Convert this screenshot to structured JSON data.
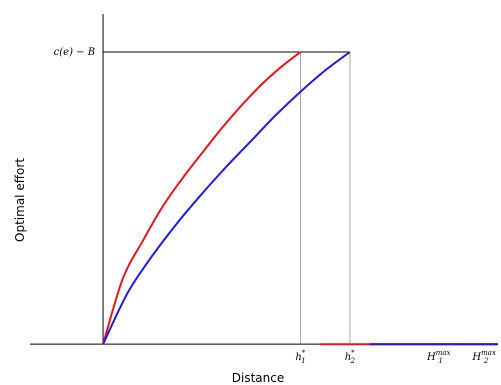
{
  "chart_data": {
    "type": "line",
    "xlabel": "Distance",
    "ylabel": "Optimal effort",
    "x_ticks": [
      {
        "x": 1.0,
        "base": "h",
        "sub": "1",
        "sup": "*"
      },
      {
        "x": 1.25,
        "base": "h",
        "sub": "2",
        "sup": "*"
      },
      {
        "x": 1.7,
        "base": "H",
        "sub": "1",
        "sup": "max"
      },
      {
        "x": 1.93,
        "base": "H",
        "sub": "2",
        "sup": "max"
      }
    ],
    "y_ticks": [
      {
        "y": 1.0,
        "label": "c(e) − B"
      }
    ],
    "xlim": [
      -0.37,
      2.0
    ],
    "ylim": [
      -0.02,
      1.13
    ],
    "cap_level": 1.0,
    "grid": false,
    "series": [
      {
        "color": "#e8141a",
        "x": [
          0,
          0.1,
          0.2,
          0.3,
          0.4,
          0.5,
          0.6,
          0.7,
          0.8,
          0.9,
          1.0,
          1.1,
          1.2,
          1.3,
          1.4,
          1.5,
          1.6,
          1.7,
          1.8,
          1.9,
          2.0
        ],
        "y": [
          0,
          0.224,
          0.352,
          0.469,
          0.566,
          0.653,
          0.738,
          0.816,
          0.887,
          0.948,
          1.0,
          0,
          0,
          0,
          0,
          0,
          0,
          0,
          0,
          0,
          0
        ]
      },
      {
        "color": "#1a1ae6",
        "x": [
          0,
          0.125,
          0.25,
          0.375,
          0.5,
          0.625,
          0.75,
          0.875,
          1.0,
          1.125,
          1.25,
          1.35,
          1.5,
          1.65,
          1.8,
          1.9,
          2.0
        ],
        "y": [
          0,
          0.176,
          0.303,
          0.414,
          0.514,
          0.608,
          0.696,
          0.784,
          0.864,
          0.937,
          1.0,
          0,
          0,
          0,
          0,
          0,
          0
        ]
      }
    ],
    "guides": [
      {
        "type": "horizontal",
        "y": 1.0,
        "x_from": 0,
        "x_to": 1.25,
        "color": "#000000"
      },
      {
        "type": "vertical",
        "x": 1.0,
        "y_from": 0,
        "y_to": 1.0,
        "color": "#aaaaaa"
      },
      {
        "type": "vertical",
        "x": 1.25,
        "y_from": 0,
        "y_to": 1.0,
        "color": "#aaaaaa"
      }
    ]
  }
}
